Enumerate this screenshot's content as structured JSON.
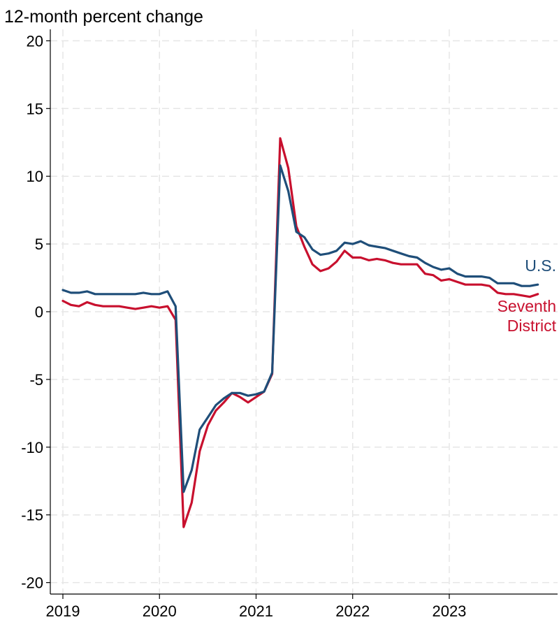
{
  "chart_data": {
    "type": "line",
    "ylabel": "12-month percent change",
    "xlabel": "",
    "ylim": [
      -20,
      20
    ],
    "yticks": [
      20,
      15,
      10,
      5,
      0,
      -5,
      -10,
      -15,
      -20
    ],
    "ytick_labels": [
      "20",
      "15",
      "10",
      "5",
      "0",
      "-5",
      "-10",
      "-15",
      "-20"
    ],
    "xlim": [
      "2019-01",
      "2023-12"
    ],
    "xticks": [
      "2019-01",
      "2020-01",
      "2021-01",
      "2022-01",
      "2023-01"
    ],
    "xtick_labels": [
      "2019",
      "2020",
      "2021",
      "2022",
      "2023"
    ],
    "grid": true,
    "x": [
      "2019-01",
      "2019-02",
      "2019-03",
      "2019-04",
      "2019-05",
      "2019-06",
      "2019-07",
      "2019-08",
      "2019-09",
      "2019-10",
      "2019-11",
      "2019-12",
      "2020-01",
      "2020-02",
      "2020-03",
      "2020-04",
      "2020-05",
      "2020-06",
      "2020-07",
      "2020-08",
      "2020-09",
      "2020-10",
      "2020-11",
      "2020-12",
      "2021-01",
      "2021-02",
      "2021-03",
      "2021-04",
      "2021-05",
      "2021-06",
      "2021-07",
      "2021-08",
      "2021-09",
      "2021-10",
      "2021-11",
      "2021-12",
      "2022-01",
      "2022-02",
      "2022-03",
      "2022-04",
      "2022-05",
      "2022-06",
      "2022-07",
      "2022-08",
      "2022-09",
      "2022-10",
      "2022-11",
      "2022-12",
      "2023-01",
      "2023-02",
      "2023-03",
      "2023-04",
      "2023-05",
      "2023-06",
      "2023-07",
      "2023-08",
      "2023-09",
      "2023-10",
      "2023-11",
      "2023-12"
    ],
    "series": [
      {
        "name": "U.S.",
        "color": "#1f4e79",
        "values": [
          1.6,
          1.4,
          1.4,
          1.5,
          1.3,
          1.3,
          1.3,
          1.3,
          1.3,
          1.3,
          1.4,
          1.3,
          1.3,
          1.5,
          0.4,
          -13.3,
          -11.7,
          -8.7,
          -7.8,
          -6.9,
          -6.4,
          -6.0,
          -6.0,
          -6.2,
          -6.1,
          -5.9,
          -4.5,
          10.8,
          8.9,
          5.9,
          5.5,
          4.6,
          4.2,
          4.3,
          4.5,
          5.1,
          5.0,
          5.2,
          4.9,
          4.8,
          4.7,
          4.5,
          4.3,
          4.1,
          4.0,
          3.6,
          3.3,
          3.1,
          3.2,
          2.8,
          2.6,
          2.6,
          2.6,
          2.5,
          2.1,
          2.1,
          2.1,
          1.9,
          1.9,
          2.0
        ]
      },
      {
        "name": "Seventh District",
        "label_lines": [
          "Seventh",
          "District"
        ],
        "color": "#c8102e",
        "values": [
          0.8,
          0.5,
          0.4,
          0.7,
          0.5,
          0.4,
          0.4,
          0.4,
          0.3,
          0.2,
          0.3,
          0.4,
          0.3,
          0.4,
          -0.6,
          -15.9,
          -14.1,
          -10.3,
          -8.4,
          -7.3,
          -6.7,
          -6.0,
          -6.3,
          -6.7,
          -6.3,
          -5.9,
          -4.6,
          12.8,
          10.6,
          6.3,
          4.8,
          3.5,
          3.0,
          3.2,
          3.7,
          4.5,
          4.0,
          4.0,
          3.8,
          3.9,
          3.8,
          3.6,
          3.5,
          3.5,
          3.5,
          2.8,
          2.7,
          2.3,
          2.4,
          2.2,
          2.0,
          2.0,
          2.0,
          1.9,
          1.4,
          1.3,
          1.3,
          1.2,
          1.1,
          1.3
        ]
      }
    ]
  }
}
